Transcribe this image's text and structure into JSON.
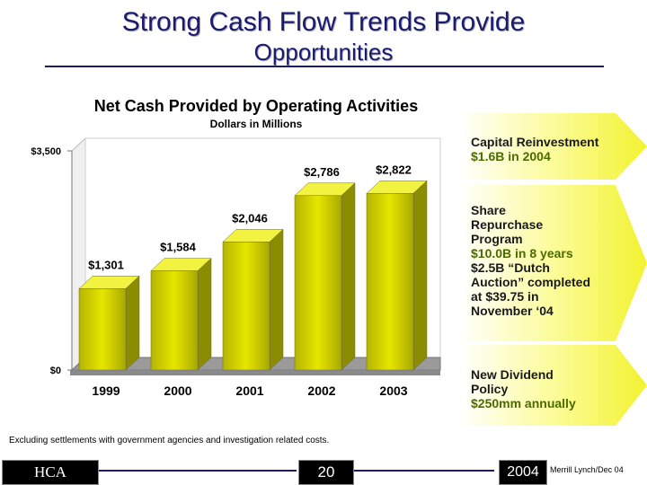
{
  "header": {
    "title_line1": "Strong Cash Flow Trends Provide",
    "title_line2": "Opportunities"
  },
  "chart_data": {
    "type": "bar",
    "title": "Net Cash Provided by Operating Activities",
    "subtitle": "Dollars in Millions",
    "categories": [
      "1999",
      "2000",
      "2001",
      "2002",
      "2003"
    ],
    "values": [
      1301,
      1584,
      2046,
      2786,
      2822
    ],
    "value_labels": [
      "$1,301",
      "$1,584",
      "$2,046",
      "$2,786",
      "$2,822"
    ],
    "ylim": [
      0,
      3500
    ],
    "yticks": [
      0,
      3500
    ],
    "ytick_labels": [
      "$0",
      "$3,500"
    ],
    "bar_color": "#e6e600",
    "grid": false,
    "legend": "none"
  },
  "callouts": [
    {
      "lines": [
        "Capital Reinvestment",
        "$1.6B in 2004"
      ],
      "colors": [
        "dark",
        "green"
      ]
    },
    {
      "lines": [
        "Share",
        "Repurchase",
        "Program",
        "$10.0B in 8 years",
        "$2.5B “Dutch",
        "Auction” completed",
        "at $39.75 in",
        "November ‘0 4"
      ],
      "colors": [
        "dark",
        "dark",
        "dark",
        "green",
        "dark",
        "dark",
        "dark",
        "dark"
      ]
    },
    {
      "lines": [
        "New Dividend",
        "Policy",
        "$250mm annually"
      ],
      "colors": [
        "dark",
        "dark",
        "green"
      ]
    }
  ],
  "footnote": "Excluding settlements with government agencies and investigation related costs.",
  "footer": {
    "logo": "HCA",
    "page": "20",
    "year": "2004",
    "source": "Merrill Lynch/Dec 04"
  }
}
